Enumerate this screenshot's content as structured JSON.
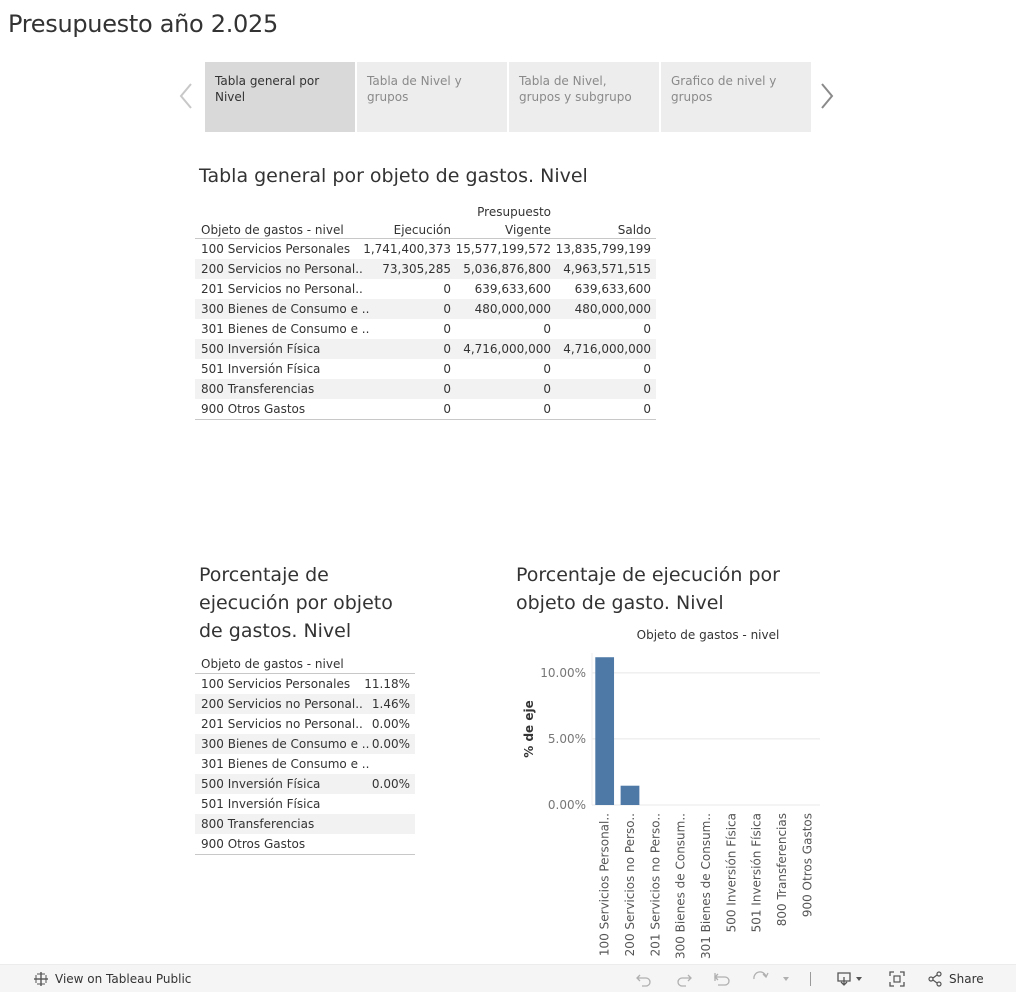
{
  "page": {
    "title": "Presupuesto año 2.025"
  },
  "tabs": [
    {
      "label": "Tabla general por Nivel",
      "active": true
    },
    {
      "label": "Tabla de Nivel y grupos",
      "active": false
    },
    {
      "label": "Tabla de Nivel, grupos y subgrupo",
      "active": false
    },
    {
      "label": "Grafico de nivel y grupos",
      "active": false
    }
  ],
  "table1": {
    "title": "Tabla general por objeto de gastos. Nivel",
    "headers": {
      "name": "Objeto de gastos - nivel",
      "ejecucion": "Ejecución",
      "presupuesto_line1": "Presupuesto",
      "presupuesto_line2": "Vigente",
      "saldo": "Saldo"
    },
    "rows": [
      {
        "name": "100 Servicios Personales",
        "ejecucion": "1,741,400,373",
        "presupuesto": "15,577,199,572",
        "saldo": "13,835,799,199"
      },
      {
        "name": "200 Servicios no Personal..",
        "ejecucion": "73,305,285",
        "presupuesto": "5,036,876,800",
        "saldo": "4,963,571,515"
      },
      {
        "name": "201 Servicios no Personal..",
        "ejecucion": "0",
        "presupuesto": "639,633,600",
        "saldo": "639,633,600"
      },
      {
        "name": "300 Bienes de Consumo e ..",
        "ejecucion": "0",
        "presupuesto": "480,000,000",
        "saldo": "480,000,000"
      },
      {
        "name": "301 Bienes de Consumo e ..",
        "ejecucion": "0",
        "presupuesto": "0",
        "saldo": "0"
      },
      {
        "name": "500 Inversión Física",
        "ejecucion": "0",
        "presupuesto": "4,716,000,000",
        "saldo": "4,716,000,000"
      },
      {
        "name": "501 Inversión Física",
        "ejecucion": "0",
        "presupuesto": "0",
        "saldo": "0"
      },
      {
        "name": "800 Transferencias",
        "ejecucion": "0",
        "presupuesto": "0",
        "saldo": "0"
      },
      {
        "name": "900 Otros Gastos",
        "ejecucion": "0",
        "presupuesto": "0",
        "saldo": "0"
      }
    ]
  },
  "table2": {
    "title": "Porcentaje de ejecución por objeto de gastos. Nivel",
    "header": "Objeto de gastos - nivel",
    "rows": [
      {
        "name": "100 Servicios Personales",
        "pct": "11.18%"
      },
      {
        "name": "200 Servicios no Personal..",
        "pct": "1.46%"
      },
      {
        "name": "201 Servicios no Personal..",
        "pct": "0.00%"
      },
      {
        "name": "300 Bienes de Consumo e ..",
        "pct": "0.00%"
      },
      {
        "name": "301 Bienes de Consumo e ..",
        "pct": ""
      },
      {
        "name": "500 Inversión Física",
        "pct": "0.00%"
      },
      {
        "name": "501 Inversión Física",
        "pct": ""
      },
      {
        "name": "800 Transferencias",
        "pct": ""
      },
      {
        "name": "900 Otros Gastos",
        "pct": ""
      }
    ]
  },
  "chart_section": {
    "title": "Porcentaje de ejecución por objeto de gasto. Nivel"
  },
  "chart_data": {
    "type": "bar",
    "title": "",
    "xlabel": "Objeto de gastos - nivel",
    "ylabel": "% de eje",
    "categories": [
      "100 Servicios Personal..",
      "200 Servicios no Perso..",
      "201 Servicios no Perso..",
      "300 Bienes de Consum..",
      "301 Bienes de Consum..",
      "500 Inversión Física",
      "501 Inversión Física",
      "800 Transferencias",
      "900 Otros Gastos"
    ],
    "values": [
      11.18,
      1.46,
      0,
      0,
      null,
      0,
      null,
      null,
      null
    ],
    "ylim": [
      0,
      11.5
    ],
    "yticks": [
      0,
      5,
      10
    ],
    "ytick_labels": [
      "0.00%",
      "5.00%",
      "10.00%"
    ],
    "grid": true,
    "color": "#4e79a7"
  },
  "footer": {
    "view_label": "View on Tableau Public",
    "share_label": "Share"
  },
  "colors": {
    "bar": "#4e79a7",
    "tab_active": "#d9d9d9",
    "tab_inactive": "#ededed"
  }
}
